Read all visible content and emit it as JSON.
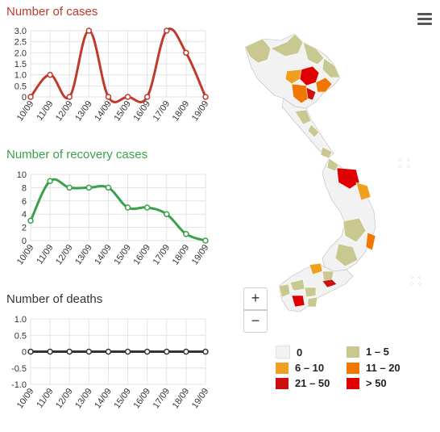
{
  "charts": [
    {
      "title": "Number of cases",
      "title_color": "#c0392b",
      "line_color": "#c0392b",
      "chart_data": {
        "type": "line",
        "categories": [
          "10/09",
          "11/09",
          "12/09",
          "13/09",
          "14/09",
          "15/09",
          "16/09",
          "17/09",
          "18/09",
          "19/09"
        ],
        "series": [
          {
            "values": [
              0,
              1,
              0,
              3,
              0,
              0,
              0,
              3,
              2,
              0
            ]
          }
        ],
        "yticks": [
          "0",
          "0.5",
          "1.0",
          "1.5",
          "2.0",
          "2.5",
          "3.0"
        ],
        "ylim": [
          0,
          3
        ]
      }
    },
    {
      "title": "Number of recovery cases",
      "title_color": "#3aa14a",
      "line_color": "#3aa14a",
      "chart_data": {
        "type": "line",
        "categories": [
          "10/09",
          "11/09",
          "12/09",
          "13/09",
          "14/09",
          "15/09",
          "16/09",
          "17/09",
          "18/09",
          "19/09"
        ],
        "series": [
          {
            "values": [
              3,
              9,
              8,
              8,
              8,
              5,
              5,
              4,
              1,
              0
            ]
          }
        ],
        "yticks": [
          "0",
          "2",
          "4",
          "6",
          "8",
          "10"
        ],
        "ylim": [
          0,
          10
        ]
      }
    },
    {
      "title": "Number of deaths",
      "title_color": "#333333",
      "line_color": "#333333",
      "chart_data": {
        "type": "line",
        "categories": [
          "10/09",
          "11/09",
          "12/09",
          "13/09",
          "14/09",
          "15/09",
          "16/09",
          "17/09",
          "18/09",
          "19/09"
        ],
        "series": [
          {
            "values": [
              0,
              0,
              0,
              0,
              0,
              0,
              0,
              0,
              0,
              0
            ]
          }
        ],
        "yticks": [
          "-1.0",
          "-0.5",
          "0",
          "0.5",
          "1.0"
        ],
        "ylim": [
          -1,
          1
        ]
      }
    }
  ],
  "map": {
    "zoom_in": "+",
    "zoom_out": "−",
    "legend": [
      {
        "label": "0",
        "color": "#f2f2f2"
      },
      {
        "label": "1 – 5",
        "color": "#c8c890"
      },
      {
        "label": "6 – 10",
        "color": "#f0a020"
      },
      {
        "label": "11 – 20",
        "color": "#f07800"
      },
      {
        "label": "21 – 50",
        "color": "#cc1010"
      },
      {
        "label": "> 50",
        "color": "#e00000"
      }
    ]
  }
}
